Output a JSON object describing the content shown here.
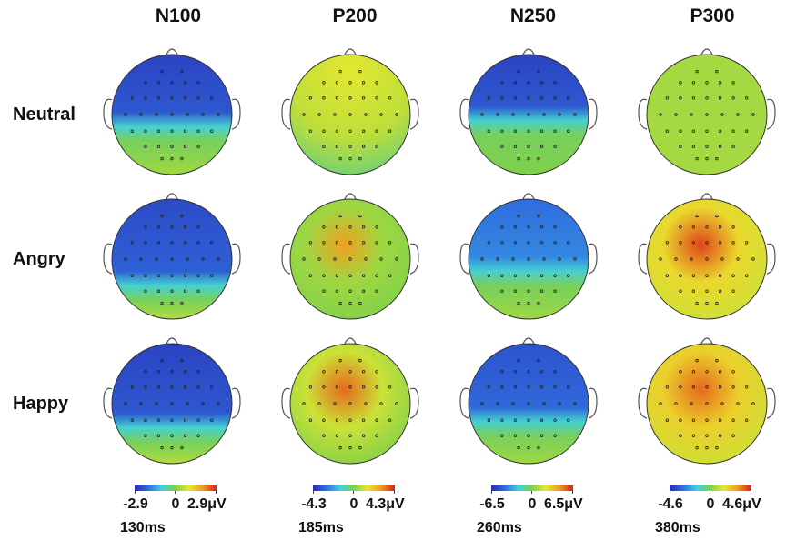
{
  "columns": [
    {
      "title": "N100",
      "scale_min": "-2.9",
      "scale_zero": "0",
      "scale_max": "2.9μV",
      "time": "130ms"
    },
    {
      "title": "P200",
      "scale_min": "-4.3",
      "scale_zero": "0",
      "scale_max": "4.3μV",
      "time": "185ms"
    },
    {
      "title": "N250",
      "scale_min": "-6.5",
      "scale_zero": "0",
      "scale_max": "6.5μV",
      "time": "260ms"
    },
    {
      "title": "P300",
      "scale_min": "-4.6",
      "scale_zero": "0",
      "scale_max": "4.6μV",
      "time": "380ms"
    }
  ],
  "rows": [
    {
      "label": "Neutral"
    },
    {
      "label": "Angry"
    },
    {
      "label": "Happy"
    }
  ],
  "colormap": [
    "#2a2ab0",
    "#2f6fe0",
    "#3fd0e0",
    "#7fd04a",
    "#e8e830",
    "#f09a20",
    "#d8201a"
  ],
  "maps": [
    [
      {
        "pattern": "front-neg",
        "front": 0.06,
        "back": 0.55,
        "boundary": 0.6
      },
      {
        "pattern": "front-pos",
        "level": 0.6,
        "center": 0.66
      },
      {
        "pattern": "front-neg",
        "front": 0.06,
        "back": 0.5,
        "boundary": 0.55
      },
      {
        "pattern": "uniform",
        "level": 0.56
      }
    ],
    [
      {
        "pattern": "front-neg",
        "front": 0.08,
        "back": 0.58,
        "boundary": 0.72
      },
      {
        "pattern": "center-pos",
        "level": 0.55,
        "peak": 0.82,
        "rim": 0.5
      },
      {
        "pattern": "front-neg",
        "front": 0.16,
        "back": 0.55,
        "boundary": 0.6
      },
      {
        "pattern": "center-pos",
        "level": 0.7,
        "peak": 0.95,
        "rim": 0.62
      }
    ],
    [
      {
        "pattern": "front-neg",
        "front": 0.06,
        "back": 0.58,
        "boundary": 0.7
      },
      {
        "pattern": "center-pos",
        "level": 0.62,
        "peak": 0.9,
        "rim": 0.5
      },
      {
        "pattern": "front-neg",
        "front": 0.1,
        "back": 0.55,
        "boundary": 0.65
      },
      {
        "pattern": "center-pos",
        "level": 0.72,
        "peak": 0.9,
        "rim": 0.62
      }
    ]
  ]
}
